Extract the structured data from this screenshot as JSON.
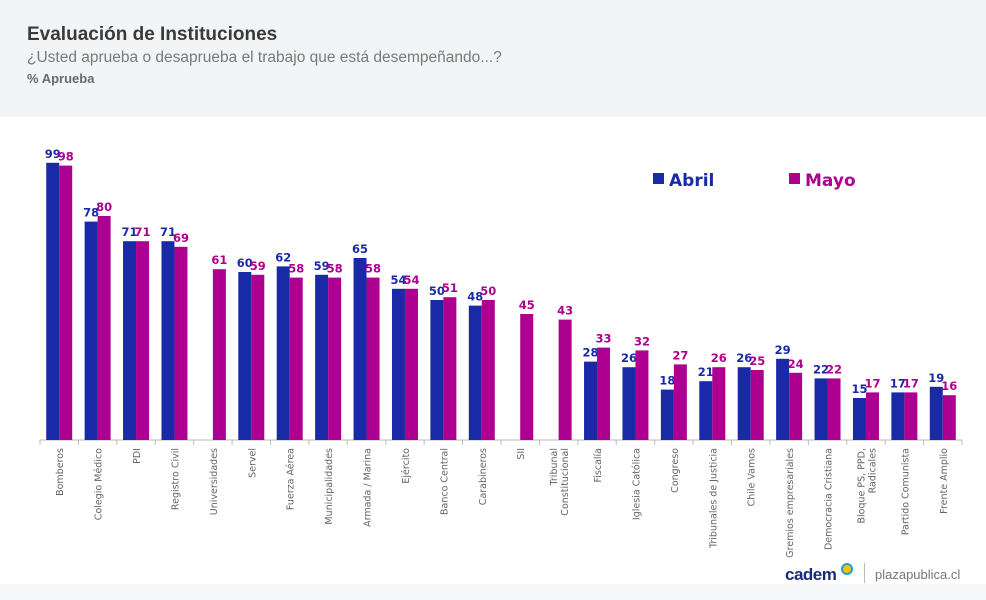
{
  "header": {
    "title": "Evaluación de Instituciones",
    "subtitle": "¿Usted aprueba o desaprueba el trabajo que está desempeñando...?",
    "unit": "% Aprueba"
  },
  "footer": {
    "logo": "cadem",
    "site": "plazapublica.cl"
  },
  "chart_data": {
    "type": "bar",
    "title": "Evaluación de Instituciones",
    "ylabel": "% Aprueba",
    "ylim": [
      0,
      100
    ],
    "grid": false,
    "legend_position": "top-right",
    "colors": {
      "Abril": "#1a2aa6",
      "Mayo": "#ad0090"
    },
    "categories": [
      "Bomberos",
      "Colegio Médico",
      "PDI",
      "Registro Civil",
      "Universidades",
      "Servel",
      "Fuerza Aérea",
      "Municipalidades",
      "Armada / Marina",
      "Ejército",
      "Banco Central",
      "Carabineros",
      "SII",
      "Tribunal Constitucional",
      "Fiscalía",
      "Iglesia Católica",
      "Congreso",
      "Tribunales de Justicia",
      "Chile Vamos",
      "Gremios empresariales",
      "Democracia Cristiana",
      "Bloque PS, PPD, Radicales",
      "Partido Comunista",
      "Frente Amplio"
    ],
    "series": [
      {
        "name": "Abril",
        "values": [
          99,
          78,
          71,
          71,
          null,
          60,
          62,
          59,
          65,
          54,
          50,
          48,
          null,
          null,
          28,
          26,
          18,
          21,
          26,
          29,
          22,
          15,
          17,
          19
        ]
      },
      {
        "name": "Mayo",
        "values": [
          98,
          80,
          71,
          69,
          61,
          59,
          58,
          58,
          58,
          54,
          51,
          50,
          45,
          43,
          33,
          32,
          27,
          26,
          25,
          24,
          22,
          17,
          17,
          16
        ]
      }
    ]
  }
}
